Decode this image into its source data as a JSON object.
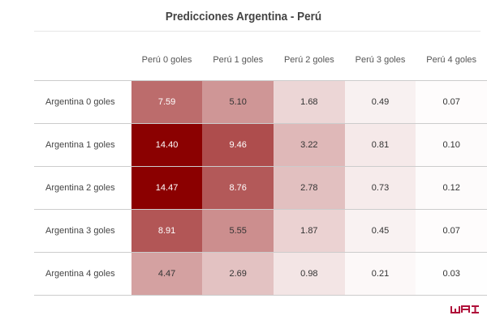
{
  "chart_data": {
    "type": "heatmap",
    "title": "Predicciones Argentina - Perú",
    "columns": [
      "Perú 0 goles",
      "Perú 1 goles",
      "Perú 2 goles",
      "Perú 3 goles",
      "Perú 4 goles"
    ],
    "rows": [
      "Argentina 0 goles",
      "Argentina 1 goles",
      "Argentina 2 goles",
      "Argentina 3 goles",
      "Argentina 4 goles"
    ],
    "values": [
      [
        "7.59",
        "5.10",
        "1.68",
        "0.49",
        "0.07"
      ],
      [
        "14.40",
        "9.46",
        "3.22",
        "0.81",
        "0.10"
      ],
      [
        "14.47",
        "8.76",
        "2.78",
        "0.73",
        "0.12"
      ],
      [
        "8.91",
        "5.55",
        "1.87",
        "0.45",
        "0.07"
      ],
      [
        "4.47",
        "2.69",
        "0.98",
        "0.21",
        "0.03"
      ]
    ],
    "color_scale": {
      "low": "#ffffff",
      "high": "#8b0000"
    }
  },
  "logo": "WAI",
  "logo_color": "#b0103a"
}
